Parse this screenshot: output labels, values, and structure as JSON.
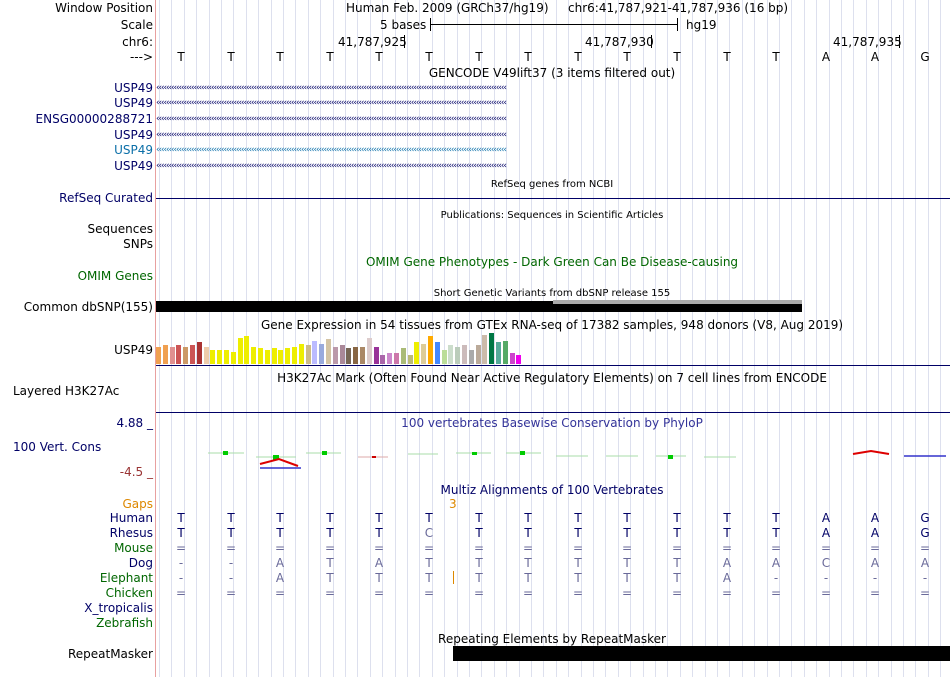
{
  "header": {
    "window_position_label": "Window Position",
    "scale_label": "Scale",
    "chrom_label": "chr6:",
    "arrow_label": "--->",
    "assembly_text": "Human Feb. 2009 (GRCh37/hg19)",
    "position_text": "chr6:41,787,921-41,787,936 (16 bp)",
    "scale_text": "5 bases",
    "db_text": "hg19",
    "coords": [
      "41,787,925",
      "41,787,930",
      "41,787,935"
    ]
  },
  "sequence": [
    "T",
    "T",
    "T",
    "T",
    "T",
    "T",
    "T",
    "T",
    "T",
    "T",
    "T",
    "T",
    "T",
    "A",
    "A",
    "G"
  ],
  "gencode": {
    "title": "GENCODE V49lift37 (3 items filtered out)",
    "tracks": [
      {
        "label": "USP49",
        "style": "navy"
      },
      {
        "label": "USP49",
        "style": "navy"
      },
      {
        "label": "ENSG00000288721",
        "style": "navy"
      },
      {
        "label": "USP49",
        "style": "navy"
      },
      {
        "label": "USP49",
        "style": "teal"
      },
      {
        "label": "USP49",
        "style": "navy"
      }
    ]
  },
  "refseq": {
    "label": "RefSeq Curated",
    "title": "RefSeq genes from NCBI"
  },
  "publications": {
    "title": "Publications: Sequences in Scientific Articles",
    "labels": [
      "Sequences",
      "SNPs"
    ]
  },
  "omim": {
    "label": "OMIM Genes",
    "title": "OMIM Gene Phenotypes - Dark Green Can Be Disease-causing"
  },
  "dbsnp": {
    "label": "Common dbSNP(155)",
    "title": "Short Genetic Variants from dbSNP release 155"
  },
  "gtex": {
    "label": "USP49",
    "title": "Gene Expression in 54 tissues from GTEx RNA-seq of 17382 samples, 948 donors (V8, Aug 2019)",
    "bars": [
      {
        "v": 0.55,
        "c": "#f0a050"
      },
      {
        "v": 0.6,
        "c": "#f0a050"
      },
      {
        "v": 0.55,
        "c": "#e09090"
      },
      {
        "v": 0.6,
        "c": "#cc5555"
      },
      {
        "v": 0.55,
        "c": "#cc9966"
      },
      {
        "v": 0.6,
        "c": "#cc5555"
      },
      {
        "v": 0.7,
        "c": "#aa3333"
      },
      {
        "v": 0.55,
        "c": "#eeccaa"
      },
      {
        "v": 0.45,
        "c": "#eeee00"
      },
      {
        "v": 0.45,
        "c": "#eeee00"
      },
      {
        "v": 0.45,
        "c": "#eeee00"
      },
      {
        "v": 0.4,
        "c": "#eeee00"
      },
      {
        "v": 0.85,
        "c": "#eeee00"
      },
      {
        "v": 0.9,
        "c": "#eeee00"
      },
      {
        "v": 0.55,
        "c": "#eeee00"
      },
      {
        "v": 0.5,
        "c": "#eeee00"
      },
      {
        "v": 0.45,
        "c": "#eeee00"
      },
      {
        "v": 0.5,
        "c": "#eeee00"
      },
      {
        "v": 0.45,
        "c": "#eeee00"
      },
      {
        "v": 0.5,
        "c": "#eeee00"
      },
      {
        "v": 0.55,
        "c": "#eeee00"
      },
      {
        "v": 0.65,
        "c": "#eeee00"
      },
      {
        "v": 0.6,
        "c": "#ccbb88"
      },
      {
        "v": 0.75,
        "c": "#bbbbff"
      },
      {
        "v": 0.65,
        "c": "#99aadd"
      },
      {
        "v": 0.8,
        "c": "#d4c4a4"
      },
      {
        "v": 0.55,
        "c": "#bb99aa"
      },
      {
        "v": 0.6,
        "c": "#aa8899"
      },
      {
        "v": 0.5,
        "c": "#776655"
      },
      {
        "v": 0.55,
        "c": "#886644"
      },
      {
        "v": 0.55,
        "c": "#aa8866"
      },
      {
        "v": 0.85,
        "c": "#ddcccc"
      },
      {
        "v": 0.55,
        "c": "#993399"
      },
      {
        "v": 0.3,
        "c": "#aa66aa"
      },
      {
        "v": 0.35,
        "c": "#cc88cc"
      },
      {
        "v": 0.35,
        "c": "#cc77aa"
      },
      {
        "v": 0.5,
        "c": "#aabb77"
      },
      {
        "v": 0.3,
        "c": "#bbbb77"
      },
      {
        "v": 0.7,
        "c": "#eeee00"
      },
      {
        "v": 0.65,
        "c": "#ddcc99"
      },
      {
        "v": 0.9,
        "c": "#ffaa00"
      },
      {
        "v": 0.7,
        "c": "#4488ff"
      },
      {
        "v": 0.45,
        "c": "#bbdd99"
      },
      {
        "v": 0.6,
        "c": "#ccddcc"
      },
      {
        "v": 0.55,
        "c": "#bbccbb"
      },
      {
        "v": 0.6,
        "c": "#ccbbbb"
      },
      {
        "v": 0.45,
        "c": "#aaaaaa"
      },
      {
        "v": 0.6,
        "c": "#bbaa99"
      },
      {
        "v": 0.95,
        "c": "#ccbbaa"
      },
      {
        "v": 1.0,
        "c": "#007744"
      },
      {
        "v": 0.7,
        "c": "#55aa99"
      },
      {
        "v": 0.75,
        "c": "#55aa66"
      },
      {
        "v": 0.35,
        "c": "#cc44cc"
      },
      {
        "v": 0.3,
        "c": "#ee00ee"
      }
    ]
  },
  "h3k27ac": {
    "label": "Layered H3K27Ac",
    "title": "H3K27Ac Mark (Often Found Near Active Regulatory Elements) on 7 cell lines from ENCODE"
  },
  "phylop": {
    "label": "100 Vert. Cons",
    "top_value": "4.88 _",
    "bottom_value": "-4.5 _",
    "title": "100 vertebrates Basewise Conservation by PhyloP"
  },
  "multiz": {
    "title": "Multiz Alignments of 100 Vertebrates",
    "gaps_label": "Gaps",
    "gap_value": "3",
    "species": [
      {
        "name": "Human",
        "color": "#000066",
        "bases": [
          "T",
          "T",
          "T",
          "T",
          "T",
          "T",
          "T",
          "T",
          "T",
          "T",
          "T",
          "T",
          "T",
          "A",
          "A",
          "G"
        ]
      },
      {
        "name": "Rhesus",
        "color": "#000066",
        "bases": [
          "T",
          "T",
          "T",
          "T",
          "T",
          "C",
          "T",
          "T",
          "T",
          "T",
          "T",
          "T",
          "T",
          "A",
          "A",
          "G"
        ]
      },
      {
        "name": "Mouse",
        "color": "#006600",
        "bases": [
          "=",
          "=",
          "=",
          "=",
          "=",
          "=",
          "=",
          "=",
          "=",
          "=",
          "=",
          "=",
          "=",
          "=",
          "=",
          "="
        ]
      },
      {
        "name": "Dog",
        "color": "#000066",
        "bases": [
          "-",
          "-",
          "A",
          "T",
          "A",
          "T",
          "T",
          "T",
          "T",
          "T",
          "T",
          "A",
          "A",
          "C",
          "A",
          "A"
        ]
      },
      {
        "name": "Elephant",
        "color": "#006600",
        "bases": [
          "-",
          "-",
          "A",
          "T",
          "T",
          "T",
          "T",
          "T",
          "T",
          "T",
          "T",
          "A",
          "-",
          "-",
          "-",
          "-"
        ]
      },
      {
        "name": "Chicken",
        "color": "#006600",
        "bases": [
          "=",
          "=",
          "=",
          "=",
          "=",
          "=",
          "=",
          "=",
          "=",
          "=",
          "=",
          "=",
          "=",
          "=",
          "=",
          "="
        ]
      },
      {
        "name": "X_tropicalis",
        "color": "#000066",
        "bases": []
      },
      {
        "name": "Zebrafish",
        "color": "#006600",
        "bases": []
      }
    ]
  },
  "repeatmasker": {
    "label": "RepeatMasker",
    "title": "Repeating Elements by RepeatMasker"
  }
}
